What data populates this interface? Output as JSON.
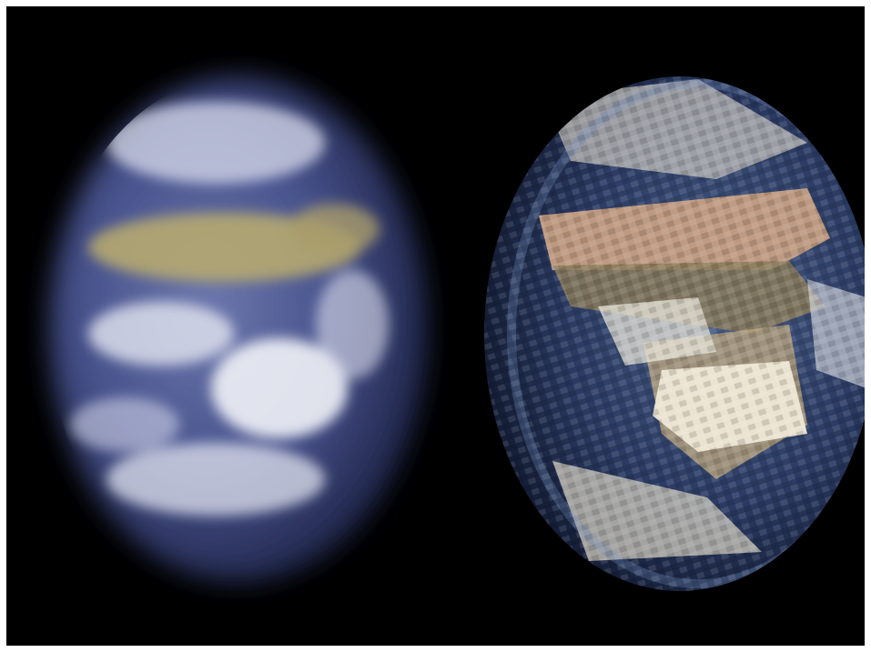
{
  "scene": {
    "background_color": "#000000",
    "border_color": "#ffffff",
    "panels": [
      {
        "name": "blurred-earth",
        "description_tags": [
          "earth",
          "blurred",
          "low-resolution"
        ],
        "colors": {
          "ocean": "#3b4a87",
          "ocean_dark": "#24305c",
          "land": "#b6a870",
          "cloud": "#e6e8f2"
        }
      },
      {
        "name": "pixelated-earth",
        "description_tags": [
          "earth",
          "pixelated",
          "enhanced"
        ],
        "colors": {
          "ocean": "#26375e",
          "ocean_dark": "#121c35",
          "land": "#c59f83",
          "land_mid": "#8a7b5c",
          "cloud": "#efe8d6"
        }
      }
    ]
  }
}
